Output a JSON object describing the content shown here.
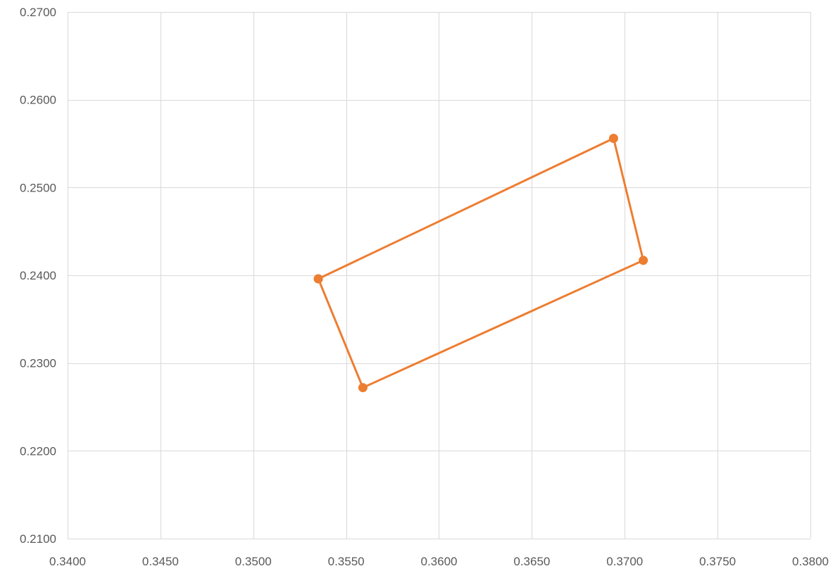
{
  "chart_data": {
    "type": "scatter",
    "title": "",
    "xlabel": "",
    "ylabel": "",
    "xlim": [
      0.34,
      0.38
    ],
    "ylim": [
      0.21,
      0.27
    ],
    "x_ticks": [
      0.34,
      0.345,
      0.35,
      0.355,
      0.36,
      0.365,
      0.37,
      0.375,
      0.38
    ],
    "y_ticks": [
      0.21,
      0.22,
      0.23,
      0.24,
      0.25,
      0.26,
      0.27
    ],
    "x_tick_labels": [
      "0.3400",
      "0.3450",
      "0.3500",
      "0.3550",
      "0.3600",
      "0.3650",
      "0.3700",
      "0.3750",
      "0.3800"
    ],
    "y_tick_labels": [
      "0.2100",
      "0.2200",
      "0.2300",
      "0.2400",
      "0.2500",
      "0.2600",
      "0.2700"
    ],
    "grid": true,
    "legend": "none",
    "series": [
      {
        "color": "#ED7D31",
        "connected": true,
        "markers": true,
        "points": [
          {
            "x": 0.3535,
            "y": 0.2396
          },
          {
            "x": 0.3694,
            "y": 0.2556
          },
          {
            "x": 0.371,
            "y": 0.2417
          },
          {
            "x": 0.3559,
            "y": 0.2272
          },
          {
            "x": 0.3535,
            "y": 0.2396
          }
        ]
      }
    ]
  }
}
